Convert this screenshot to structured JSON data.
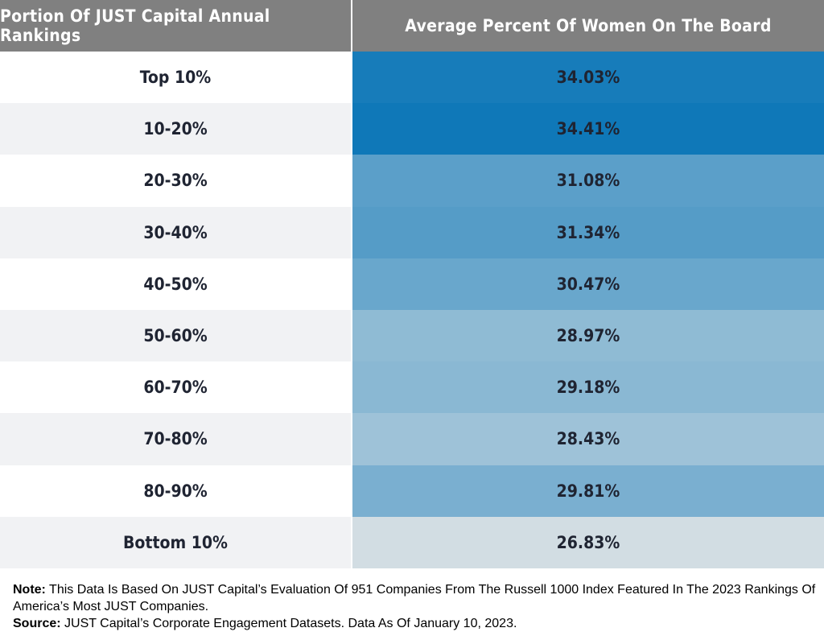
{
  "chart_data": {
    "type": "table",
    "columns": [
      "Portion Of JUST Capital Annual Rankings",
      "Average Percent Of Women On The Board"
    ],
    "categories": [
      "Top 10%",
      "10-20%",
      "20-30%",
      "30-40%",
      "40-50%",
      "50-60%",
      "60-70%",
      "70-80%",
      "80-90%",
      "Bottom 10%"
    ],
    "values": [
      34.03,
      34.41,
      31.08,
      31.34,
      30.47,
      28.97,
      29.18,
      28.43,
      29.81,
      26.83
    ],
    "value_labels": [
      "34.03%",
      "34.41%",
      "31.08%",
      "31.34%",
      "30.47%",
      "28.97%",
      "29.18%",
      "28.43%",
      "29.81%",
      "26.83%"
    ],
    "colors": {
      "header_bg": "#808080",
      "high": "#0f78b8",
      "low": "#d2dde3",
      "row_alt": "#f1f2f4"
    }
  },
  "footer": {
    "note_label": "Note:",
    "note_text": " This Data Is Based On JUST Capital’s Evaluation Of 951 Companies From The Russell 1000 Index Featured In The 2023 Rankings Of America’s Most JUST Companies.",
    "source_label": "Source:",
    "source_text": " JUST Capital’s Corporate Engagement Datasets. Data As Of January 10, 2023."
  }
}
